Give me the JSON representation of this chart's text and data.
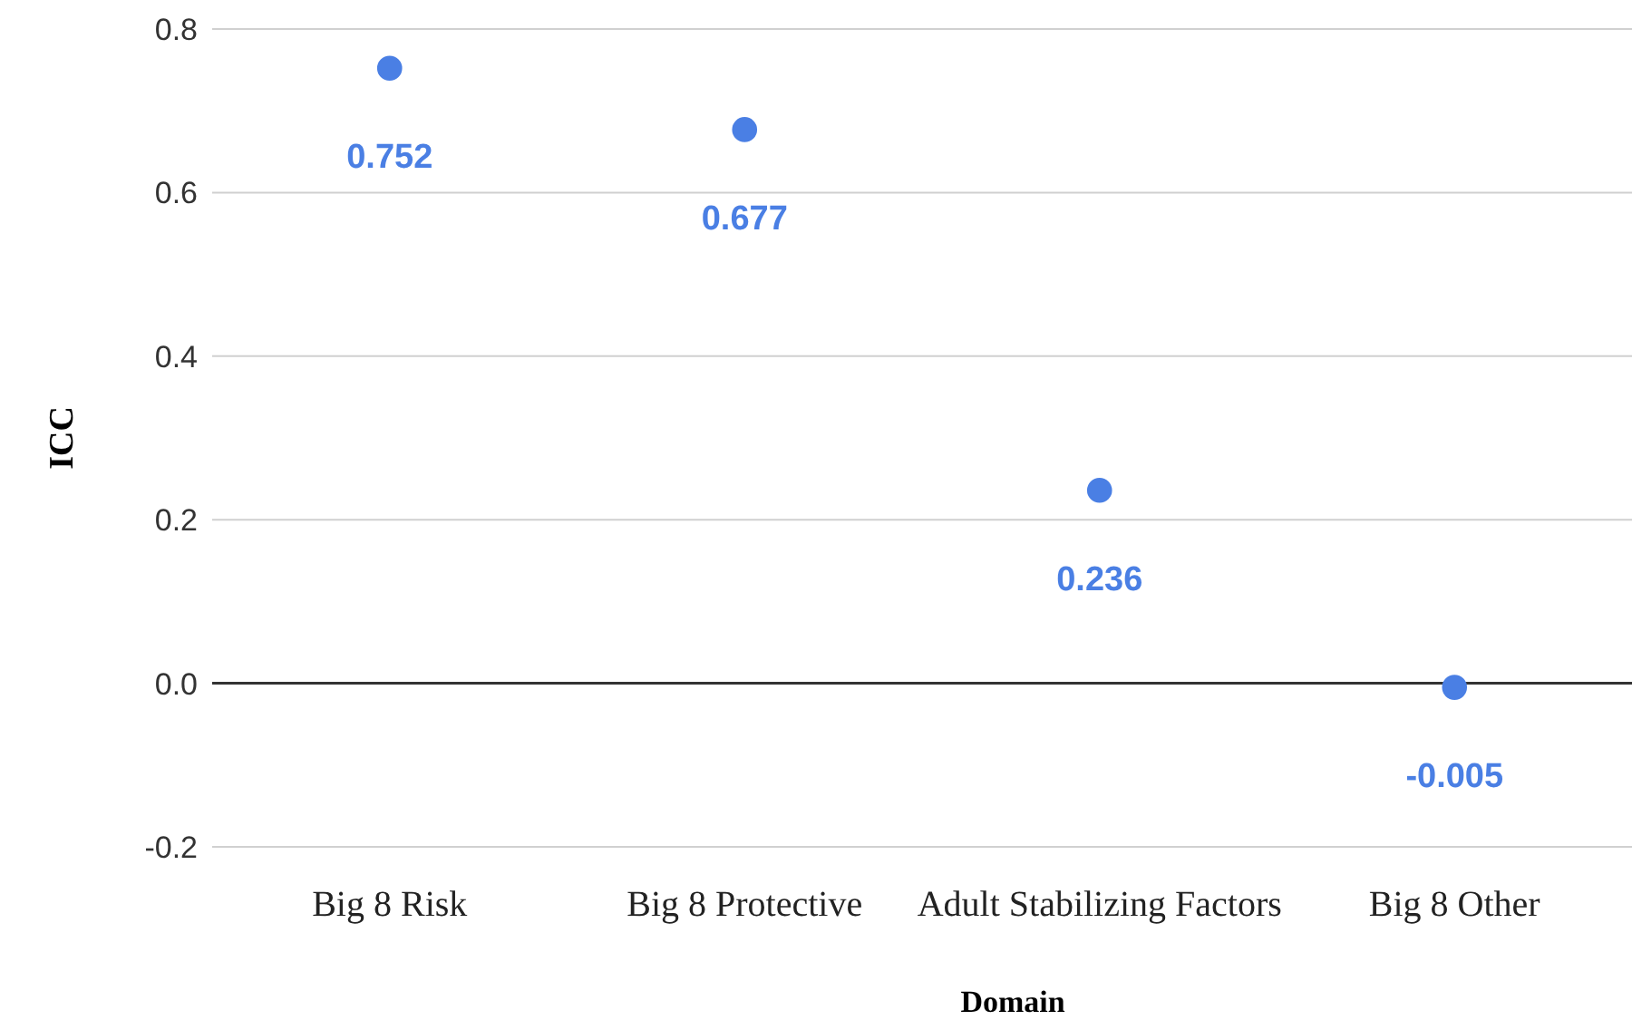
{
  "chart_data": {
    "type": "scatter",
    "xlabel": "Domain",
    "ylabel": "ICC",
    "categories": [
      "Big 8 Risk",
      "Big 8 Protective",
      "Adult Stabilizing Factors",
      "Big 8 Other"
    ],
    "series": [
      {
        "color": "#4a7fe4",
        "values": [
          0.752,
          0.677,
          0.236,
          -0.005
        ]
      }
    ],
    "ylim": [
      -0.2,
      0.8
    ],
    "yticks": [
      {
        "value": -0.2,
        "label": "-0.2"
      },
      {
        "value": 0,
        "label": "0.0"
      },
      {
        "value": 0.2,
        "label": "0.2"
      },
      {
        "value": 0.4,
        "label": "0.4"
      },
      {
        "value": 0.6,
        "label": "0.6"
      },
      {
        "value": 0.8,
        "label": "0.8"
      }
    ],
    "grid": "y",
    "marker": "circle",
    "data_labels": true
  }
}
